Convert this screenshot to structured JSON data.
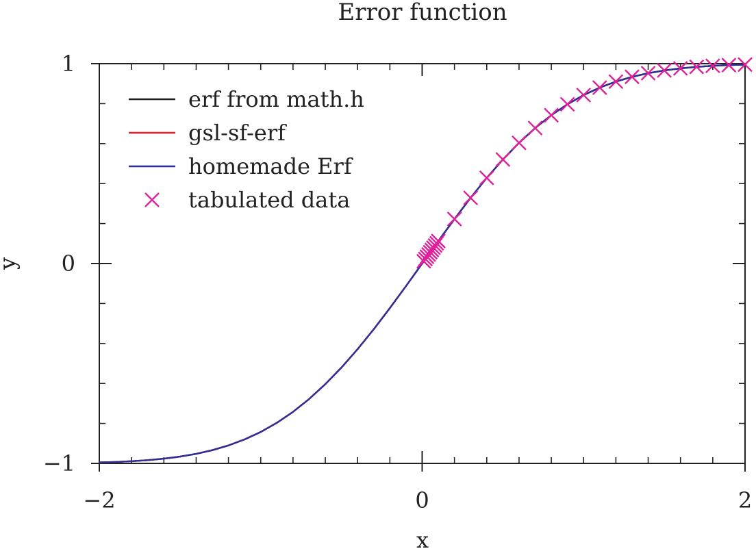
{
  "chart_data": {
    "type": "line",
    "title": "Error function",
    "xlabel": "x",
    "ylabel": "y",
    "xlim": [
      -2,
      2
    ],
    "ylim": [
      -1,
      1
    ],
    "x_ticks": [
      -2,
      0,
      2
    ],
    "x_tick_labels": [
      "−2",
      "0",
      "2"
    ],
    "y_ticks": [
      -1,
      0,
      1
    ],
    "y_tick_labels": [
      "−1",
      "0",
      "1"
    ],
    "x_minor_step": 0.2,
    "y_minor_step": 0.2,
    "grid": false,
    "legend_position": "top-left",
    "series": [
      {
        "name": "erf from math.h",
        "kind": "line",
        "color": "#1a1a1a",
        "x": [
          -2.0,
          -1.9,
          -1.8,
          -1.7,
          -1.6,
          -1.5,
          -1.4,
          -1.3,
          -1.2,
          -1.1,
          -1.0,
          -0.9,
          -0.8,
          -0.7,
          -0.6,
          -0.5,
          -0.4,
          -0.3,
          -0.2,
          -0.1,
          0.0,
          0.1,
          0.2,
          0.3,
          0.4,
          0.5,
          0.6,
          0.7,
          0.8,
          0.9,
          1.0,
          1.1,
          1.2,
          1.3,
          1.4,
          1.5,
          1.6,
          1.7,
          1.8,
          1.9,
          2.0
        ],
        "y": [
          -0.9953,
          -0.9928,
          -0.9891,
          -0.9838,
          -0.9763,
          -0.9661,
          -0.9523,
          -0.934,
          -0.9103,
          -0.8802,
          -0.8427,
          -0.7969,
          -0.7421,
          -0.6778,
          -0.6039,
          -0.5205,
          -0.4284,
          -0.3286,
          -0.2227,
          -0.1125,
          0.0,
          0.1125,
          0.2227,
          0.3286,
          0.4284,
          0.5205,
          0.6039,
          0.6778,
          0.7421,
          0.7969,
          0.8427,
          0.8802,
          0.9103,
          0.934,
          0.9523,
          0.9661,
          0.9763,
          0.9838,
          0.9891,
          0.9928,
          0.9953
        ]
      },
      {
        "name": "gsl-sf-erf",
        "kind": "line",
        "color": "#e8202a",
        "x": [
          -2.0,
          -1.9,
          -1.8,
          -1.7,
          -1.6,
          -1.5,
          -1.4,
          -1.3,
          -1.2,
          -1.1,
          -1.0,
          -0.9,
          -0.8,
          -0.7,
          -0.6,
          -0.5,
          -0.4,
          -0.3,
          -0.2,
          -0.1,
          0.0,
          0.1,
          0.2,
          0.3,
          0.4,
          0.5,
          0.6,
          0.7,
          0.8,
          0.9,
          1.0,
          1.1,
          1.2,
          1.3,
          1.4,
          1.5,
          1.6,
          1.7,
          1.8,
          1.9,
          2.0
        ],
        "y": [
          -0.9953,
          -0.9928,
          -0.9891,
          -0.9838,
          -0.9763,
          -0.9661,
          -0.9523,
          -0.934,
          -0.9103,
          -0.8802,
          -0.8427,
          -0.7969,
          -0.7421,
          -0.6778,
          -0.6039,
          -0.5205,
          -0.4284,
          -0.3286,
          -0.2227,
          -0.1125,
          0.0,
          0.1125,
          0.2227,
          0.3286,
          0.4284,
          0.5205,
          0.6039,
          0.6778,
          0.7421,
          0.7969,
          0.8427,
          0.8802,
          0.9103,
          0.934,
          0.9523,
          0.9661,
          0.9763,
          0.9838,
          0.9891,
          0.9928,
          0.9953
        ]
      },
      {
        "name": "homemade Erf",
        "kind": "line",
        "color": "#2b2f9a",
        "x": [
          -2.0,
          -1.9,
          -1.8,
          -1.7,
          -1.6,
          -1.5,
          -1.4,
          -1.3,
          -1.2,
          -1.1,
          -1.0,
          -0.9,
          -0.8,
          -0.7,
          -0.6,
          -0.5,
          -0.4,
          -0.3,
          -0.2,
          -0.1,
          0.0,
          0.1,
          0.2,
          0.3,
          0.4,
          0.5,
          0.6,
          0.7,
          0.8,
          0.9,
          1.0,
          1.1,
          1.2,
          1.3,
          1.4,
          1.5,
          1.6,
          1.7,
          1.8,
          1.9,
          2.0
        ],
        "y": [
          -0.9953,
          -0.9928,
          -0.9891,
          -0.9838,
          -0.9763,
          -0.9661,
          -0.9523,
          -0.934,
          -0.9103,
          -0.8802,
          -0.8427,
          -0.7969,
          -0.7421,
          -0.6778,
          -0.6039,
          -0.5205,
          -0.4284,
          -0.3286,
          -0.2227,
          -0.1125,
          0.0,
          0.1125,
          0.2227,
          0.3286,
          0.4284,
          0.5205,
          0.6039,
          0.6778,
          0.7421,
          0.7969,
          0.8427,
          0.8802,
          0.9103,
          0.934,
          0.9523,
          0.9661,
          0.9763,
          0.9838,
          0.9891,
          0.9928,
          0.9953
        ]
      },
      {
        "name": "tabulated data",
        "kind": "scatter",
        "marker": "x",
        "color": "#e0209a",
        "x": [
          0.01,
          0.02,
          0.03,
          0.04,
          0.05,
          0.06,
          0.07,
          0.08,
          0.09,
          0.1,
          0.2,
          0.3,
          0.4,
          0.5,
          0.6,
          0.7,
          0.8,
          0.9,
          1.0,
          1.1,
          1.2,
          1.3,
          1.4,
          1.5,
          1.6,
          1.7,
          1.8,
          1.9,
          2.0
        ],
        "y": [
          0.0113,
          0.0226,
          0.0338,
          0.0451,
          0.0564,
          0.0676,
          0.0789,
          0.0901,
          0.1013,
          0.1125,
          0.2227,
          0.3286,
          0.4284,
          0.5205,
          0.6039,
          0.6778,
          0.7421,
          0.7969,
          0.8427,
          0.8802,
          0.9103,
          0.934,
          0.9523,
          0.9661,
          0.9763,
          0.9838,
          0.9891,
          0.9928,
          0.9953
        ]
      }
    ]
  }
}
